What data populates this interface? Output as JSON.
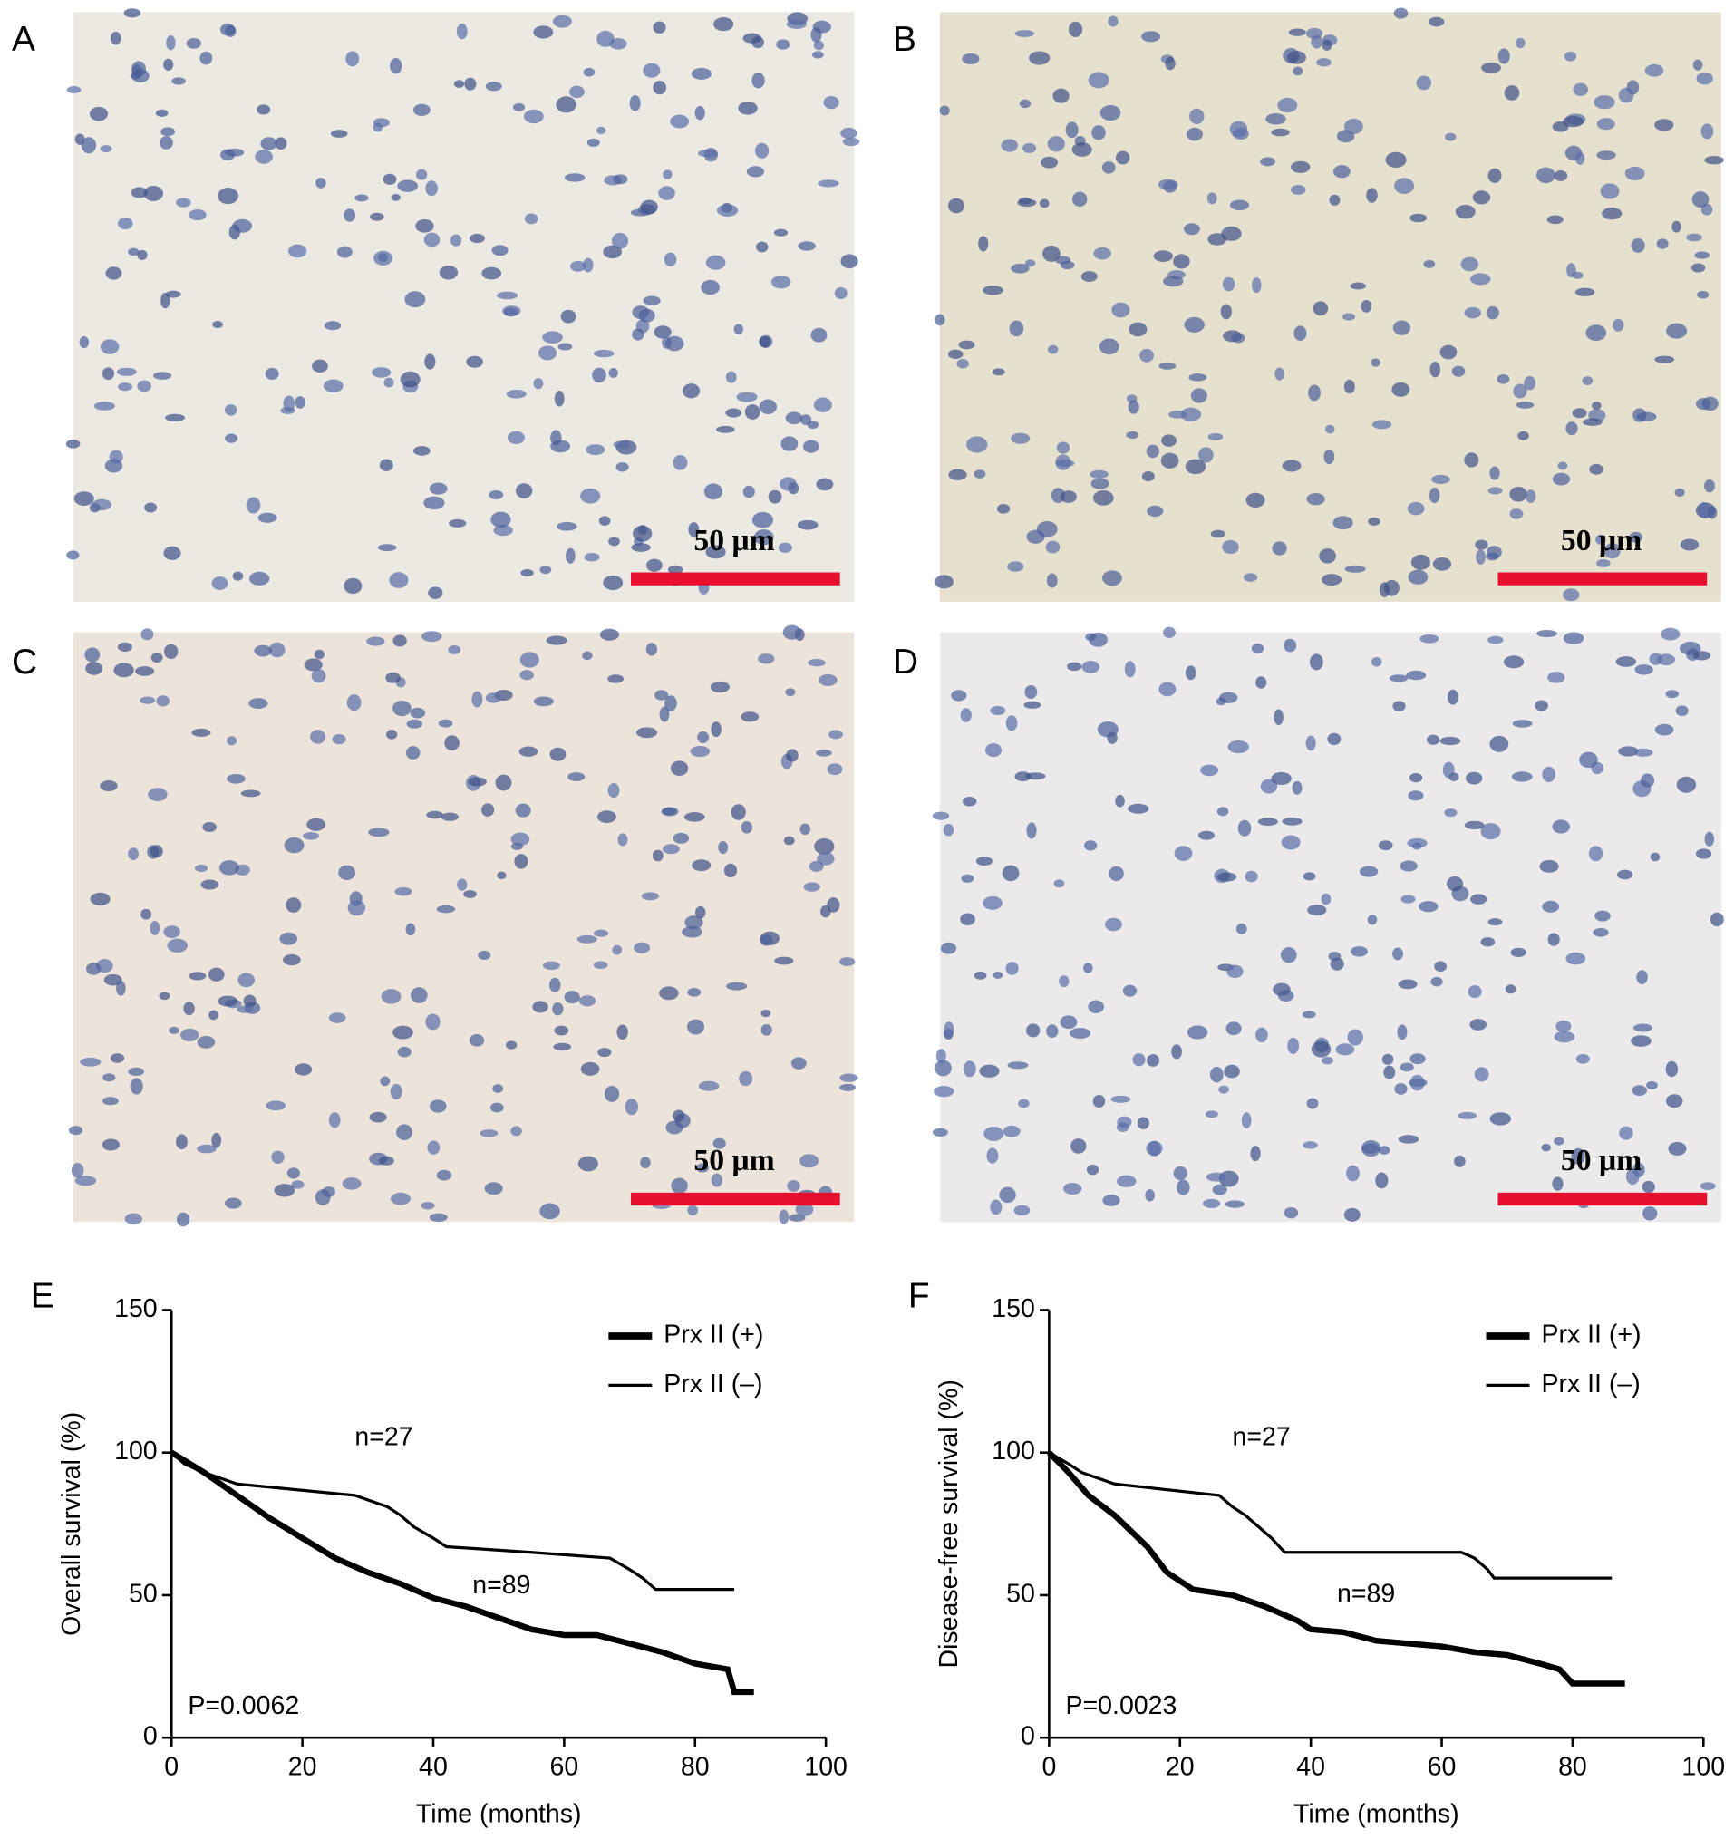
{
  "panels": [
    {
      "label": "A",
      "scale_bar_label": "50 μm"
    },
    {
      "label": "B",
      "scale_bar_label": "50 μm"
    },
    {
      "label": "C",
      "scale_bar_label": "50 μm"
    },
    {
      "label": "D",
      "scale_bar_label": "50 μm"
    }
  ],
  "chart_data": [
    {
      "type": "line",
      "panel_label": "E",
      "xlabel": "Time (months)",
      "ylabel": "Overall survival (%)",
      "xlim": [
        0,
        100
      ],
      "xticks": [
        0,
        20,
        40,
        60,
        80,
        100
      ],
      "ylim": [
        0,
        150
      ],
      "yticks": [
        0,
        50,
        100,
        150
      ],
      "legend": "top-right",
      "annotations": [
        "n=27",
        "n=89"
      ],
      "p_value": "P=0.0062",
      "series": [
        {
          "name": "Prx II (+)",
          "color": "#000000",
          "x": [
            0,
            5,
            10,
            15,
            20,
            25,
            30,
            35,
            40,
            45,
            50,
            55,
            60,
            65,
            70,
            75,
            80,
            85,
            86,
            89
          ],
          "values": [
            100,
            93,
            85,
            77,
            70,
            63,
            58,
            54,
            49,
            46,
            42,
            38,
            36,
            36,
            33,
            30,
            26,
            24,
            16,
            16
          ]
        },
        {
          "name": "Prx II (–)",
          "color": "#000000",
          "x": [
            0,
            2,
            5,
            10,
            28,
            33,
            35,
            37,
            40,
            42,
            55,
            67,
            70,
            72,
            74,
            86
          ],
          "values": [
            100,
            96,
            93,
            89,
            85,
            81,
            78,
            74,
            70,
            67,
            65,
            63,
            59,
            56,
            52,
            52
          ]
        }
      ]
    },
    {
      "type": "line",
      "panel_label": "F",
      "xlabel": "Time (months)",
      "ylabel": "Disease-free survival (%)",
      "xlim": [
        0,
        100
      ],
      "xticks": [
        0,
        20,
        40,
        60,
        80,
        100
      ],
      "ylim": [
        0,
        150
      ],
      "yticks": [
        0,
        50,
        100,
        150
      ],
      "legend": "top-right",
      "annotations": [
        "n=27",
        "n=89"
      ],
      "p_value": "P=0.0023",
      "series": [
        {
          "name": "Prx II (+)",
          "color": "#000000",
          "x": [
            0,
            3,
            6,
            10,
            15,
            18,
            22,
            28,
            33,
            38,
            40,
            45,
            50,
            55,
            60,
            65,
            70,
            75,
            78,
            80,
            88
          ],
          "values": [
            100,
            93,
            85,
            78,
            67,
            58,
            52,
            50,
            46,
            41,
            38,
            37,
            34,
            33,
            32,
            30,
            29,
            26,
            24,
            19,
            19
          ]
        },
        {
          "name": "Prx II (–)",
          "color": "#000000",
          "x": [
            0,
            3,
            5,
            10,
            26,
            28,
            30,
            32,
            34,
            36,
            63,
            65,
            67,
            68,
            86
          ],
          "values": [
            100,
            96,
            93,
            89,
            85,
            81,
            78,
            74,
            70,
            65,
            65,
            63,
            59,
            56,
            56
          ]
        }
      ]
    }
  ]
}
